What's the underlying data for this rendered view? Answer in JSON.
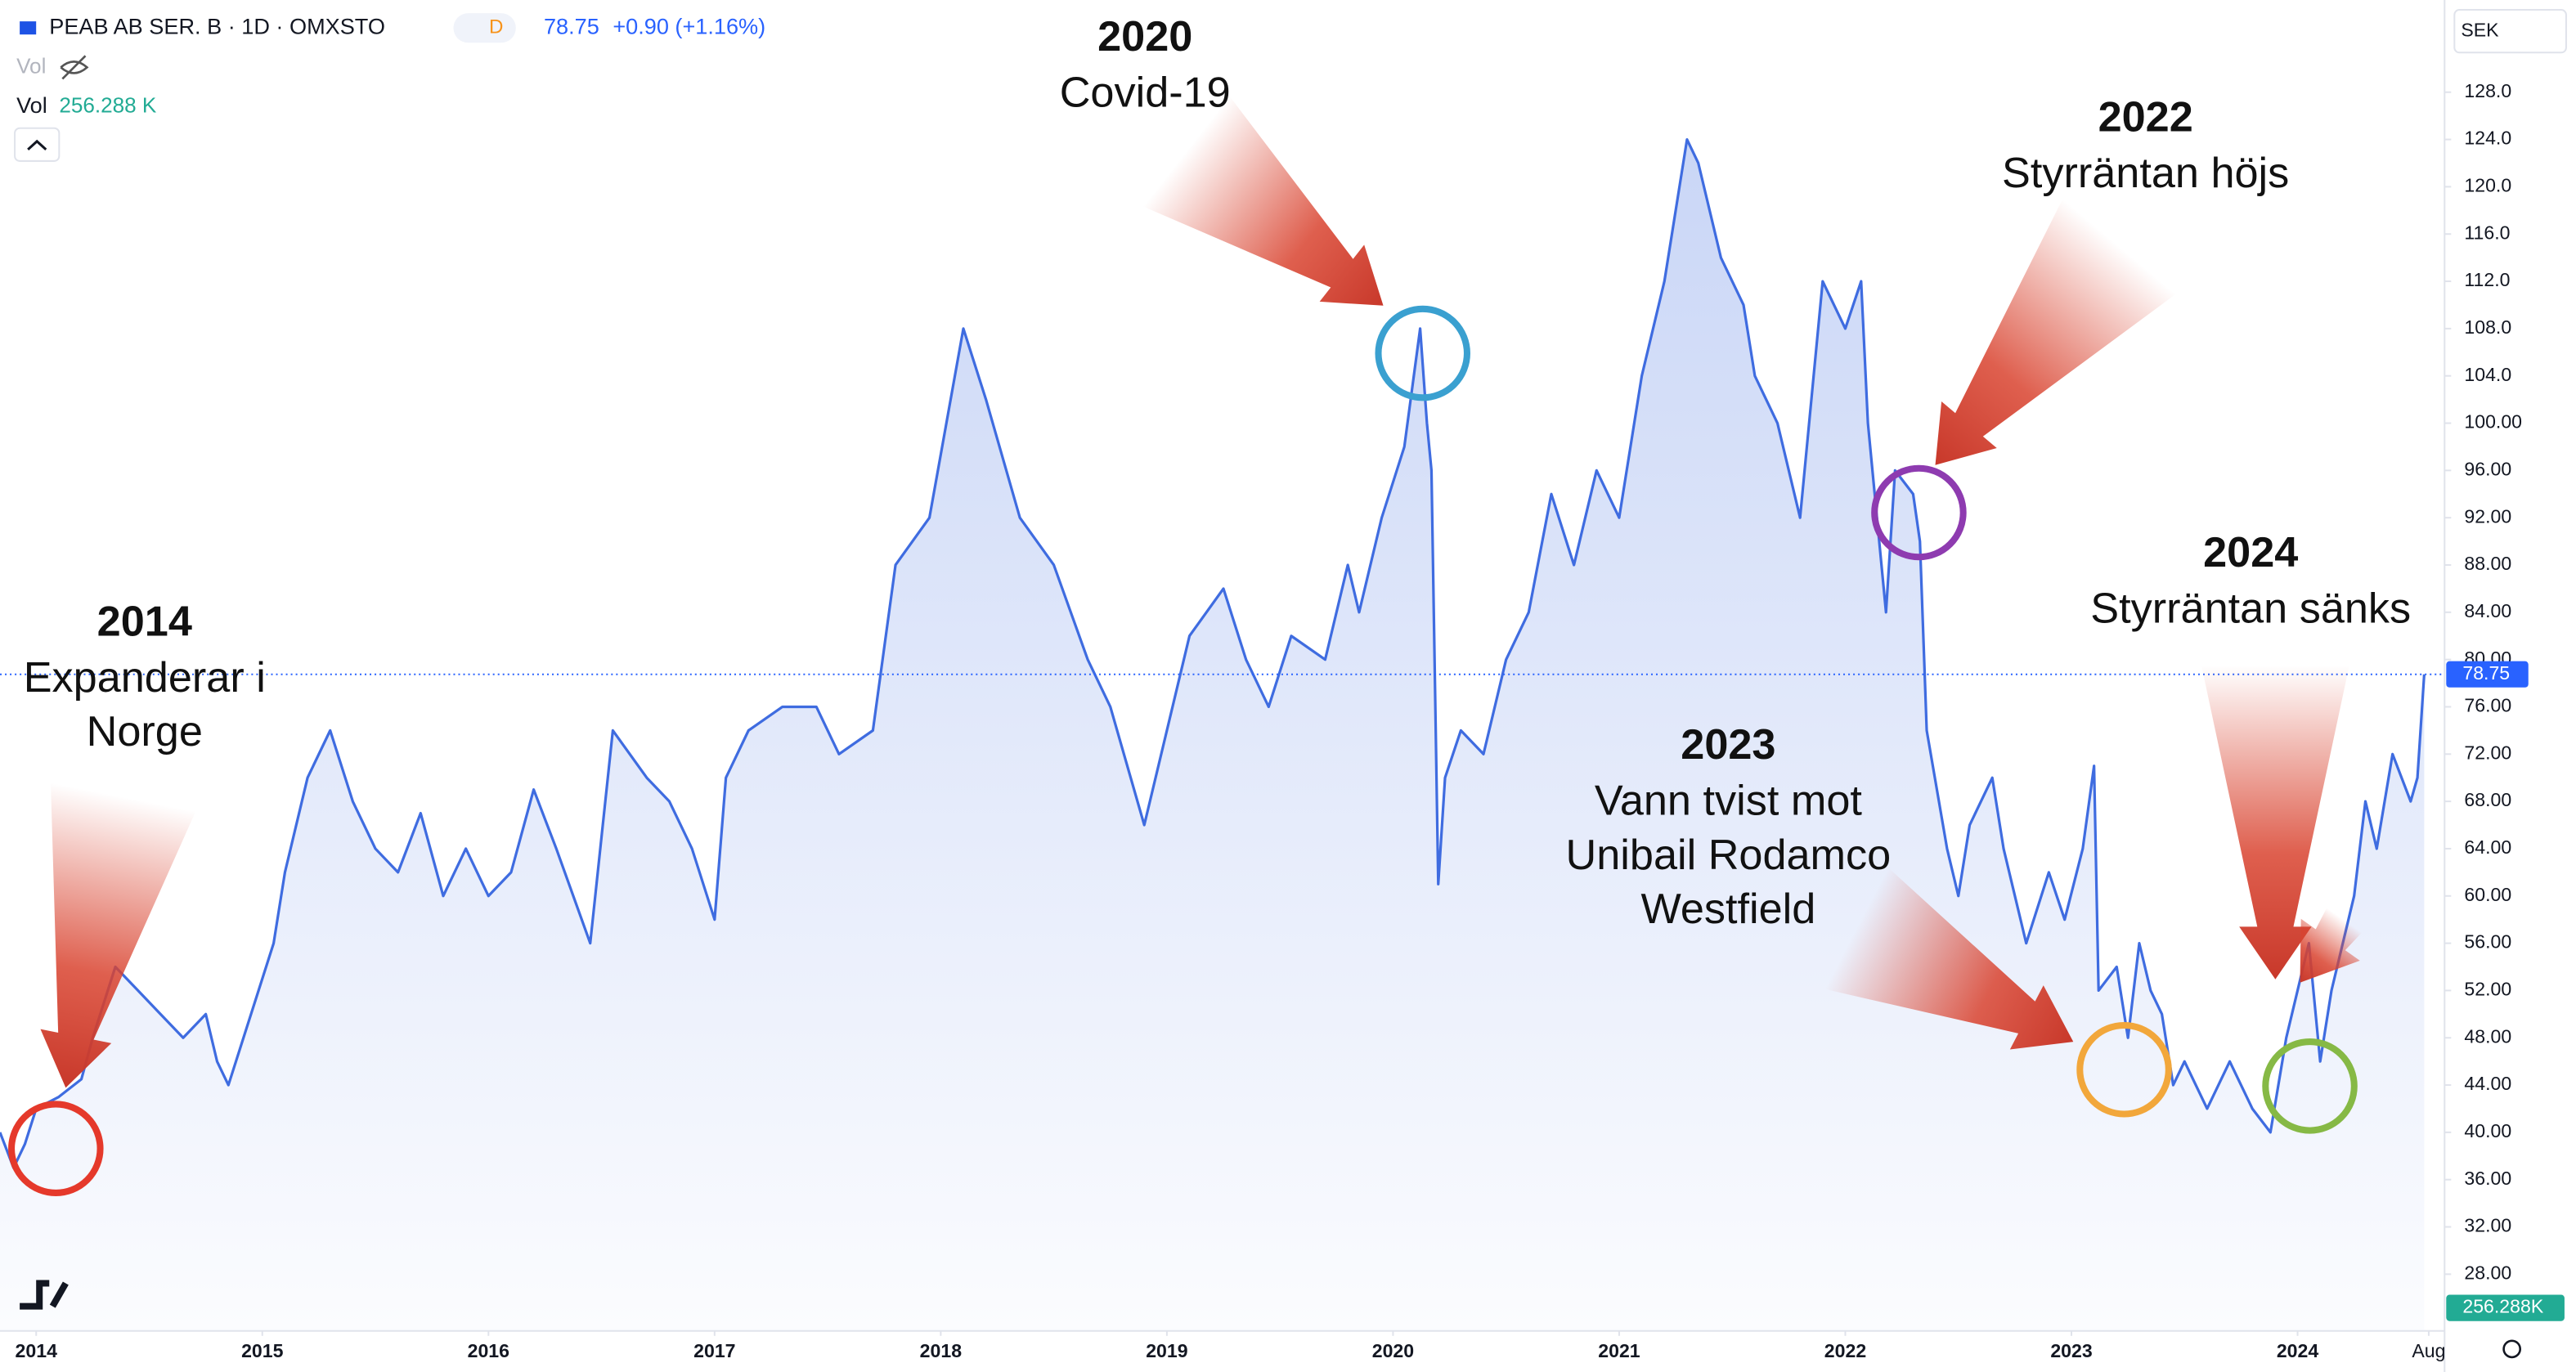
{
  "chart_data": {
    "type": "line",
    "title": "PEAB AB SER. B · 1D · OMXSTO",
    "interval_badge": "D",
    "last_price": 78.75,
    "change_label": "+0.90 (+1.16%)",
    "volume_label": "Vol",
    "volume_header_label": "256.288 K",
    "volume_axis_label": "256.288K",
    "currency": "SEK",
    "color": "#3f6ce0",
    "x": [
      2013.84,
      2013.9,
      2013.95,
      2014.0,
      2014.1,
      2014.2,
      2014.25,
      2014.35,
      2014.45,
      2014.55,
      2014.65,
      2014.75,
      2014.8,
      2014.85,
      2014.95,
      2015.05,
      2015.1,
      2015.2,
      2015.3,
      2015.4,
      2015.5,
      2015.6,
      2015.7,
      2015.8,
      2015.9,
      2016.0,
      2016.1,
      2016.2,
      2016.3,
      2016.45,
      2016.55,
      2016.7,
      2016.8,
      2016.9,
      2017.0,
      2017.05,
      2017.15,
      2017.3,
      2017.45,
      2017.55,
      2017.7,
      2017.8,
      2017.95,
      2018.1,
      2018.2,
      2018.35,
      2018.5,
      2018.65,
      2018.75,
      2018.9,
      2019.0,
      2019.1,
      2019.25,
      2019.35,
      2019.45,
      2019.55,
      2019.7,
      2019.8,
      2019.85,
      2019.95,
      2020.05,
      2020.12,
      2020.15,
      2020.17,
      2020.2,
      2020.23,
      2020.3,
      2020.4,
      2020.5,
      2020.6,
      2020.7,
      2020.8,
      2020.9,
      2021.0,
      2021.1,
      2021.2,
      2021.3,
      2021.35,
      2021.45,
      2021.55,
      2021.6,
      2021.7,
      2021.8,
      2021.9,
      2022.0,
      2022.07,
      2022.1,
      2022.15,
      2022.18,
      2022.22,
      2022.3,
      2022.33,
      2022.36,
      2022.45,
      2022.5,
      2022.55,
      2022.65,
      2022.7,
      2022.8,
      2022.9,
      2022.97,
      2023.05,
      2023.1,
      2023.12,
      2023.2,
      2023.25,
      2023.3,
      2023.35,
      2023.4,
      2023.45,
      2023.5,
      2023.6,
      2023.7,
      2023.8,
      2023.88,
      2023.95,
      2024.0,
      2024.05,
      2024.1,
      2024.15,
      2024.25,
      2024.3,
      2024.35,
      2024.42,
      2024.5,
      2024.53,
      2024.56
    ],
    "values": [
      40,
      37,
      39,
      42,
      43,
      44.5,
      48,
      54,
      52,
      50,
      48,
      50,
      46,
      44,
      50,
      56,
      62,
      70,
      74,
      68,
      64,
      62,
      67,
      60,
      64,
      60,
      62,
      69,
      64,
      56,
      74,
      70,
      68,
      64,
      58,
      70,
      74,
      76,
      76,
      72,
      74,
      88,
      92,
      108,
      102,
      92,
      88,
      80,
      76,
      66,
      74,
      82,
      86,
      80,
      76,
      82,
      80,
      88,
      84,
      92,
      98,
      108,
      100,
      96,
      61,
      70,
      74,
      72,
      80,
      84,
      94,
      88,
      96,
      92,
      104,
      112,
      124,
      122,
      114,
      110,
      104,
      100,
      92,
      112,
      108,
      112,
      100,
      90,
      84,
      96,
      94,
      90,
      74,
      64,
      60,
      66,
      70,
      64,
      56,
      62,
      58,
      64,
      71,
      52,
      54,
      48,
      56,
      52,
      50,
      44,
      46,
      42,
      46,
      42,
      40,
      48,
      52,
      56,
      46,
      52,
      60,
      68,
      64,
      72,
      68,
      70,
      78.75
    ],
    "xlim": [
      2013.84,
      2024.65
    ],
    "xticks": [
      2014,
      2015,
      2016,
      2017,
      2018,
      2019,
      2020,
      2021,
      2022,
      2023,
      2024,
      {
        "value": 2024.58,
        "label": "Aug"
      }
    ],
    "ylim": [
      23.2,
      135.8
    ],
    "yticks": [
      {
        "value": 28,
        "label": "28.00"
      },
      {
        "value": 32,
        "label": "32.00"
      },
      {
        "value": 36,
        "label": "36.00"
      },
      {
        "value": 40,
        "label": "40.00"
      },
      {
        "value": 44,
        "label": "44.00"
      },
      {
        "value": 48,
        "label": "48.00"
      },
      {
        "value": 52,
        "label": "52.00"
      },
      {
        "value": 56,
        "label": "56.00"
      },
      {
        "value": 60,
        "label": "60.00"
      },
      {
        "value": 64,
        "label": "64.00"
      },
      {
        "value": 68,
        "label": "68.00"
      },
      {
        "value": 72,
        "label": "72.00"
      },
      {
        "value": 76,
        "label": "76.00"
      },
      {
        "value": 80,
        "label": "80.00"
      },
      {
        "value": 84,
        "label": "84.00"
      },
      {
        "value": 88,
        "label": "88.00"
      },
      {
        "value": 92,
        "label": "92.00"
      },
      {
        "value": 96,
        "label": "96.00"
      },
      {
        "value": 100,
        "label": "100.00"
      },
      {
        "value": 104,
        "label": "104.0"
      },
      {
        "value": 108,
        "label": "108.0"
      },
      {
        "value": 112,
        "label": "112.0"
      },
      {
        "value": 116,
        "label": "116.0"
      },
      {
        "value": 120,
        "label": "120.0"
      },
      {
        "value": 124,
        "label": "124.0"
      },
      {
        "value": 128,
        "label": "128.0"
      }
    ],
    "grid": false,
    "annotations": [
      {
        "title": "2014",
        "lines": [
          "Expanderar i",
          "Norge"
        ]
      },
      {
        "title": "2020",
        "lines": [
          "Covid-19"
        ]
      },
      {
        "title": "2022",
        "lines": [
          "Styrräntan höjs"
        ]
      },
      {
        "title": "2023",
        "lines": [
          "Vann tvist mot",
          "Unibail Rodamco",
          "Westfield"
        ]
      },
      {
        "title": "2024",
        "lines": [
          "Styrräntan sänks"
        ]
      }
    ]
  }
}
